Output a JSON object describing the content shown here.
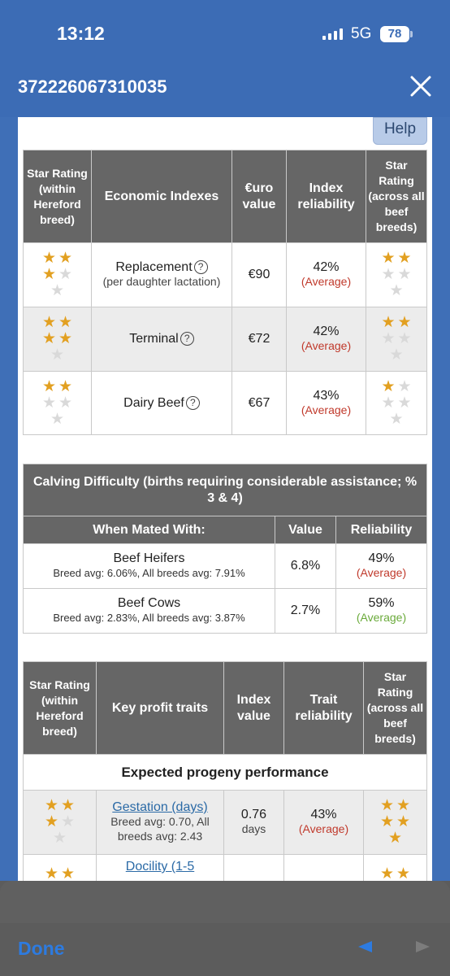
{
  "status": {
    "time": "13:12",
    "network": "5G",
    "battery": "78"
  },
  "nav": {
    "title": "372226067310035"
  },
  "help_label": "Help",
  "economic": {
    "headers": [
      "Star Rating (within Hereford breed)",
      "Economic Indexes",
      "€uro value",
      "Index reliability",
      "Star Rating (across all beef breeds)"
    ],
    "rows": [
      {
        "name": "Replacement",
        "sub": "(per daughter lactation)",
        "value": "€90",
        "reliability": "42%",
        "rel_label": "(Average)",
        "stars_within": 3,
        "stars_across": 2
      },
      {
        "name": "Terminal",
        "sub": "",
        "value": "€72",
        "reliability": "42%",
        "rel_label": "(Average)",
        "stars_within": 4,
        "stars_across": 2
      },
      {
        "name": "Dairy Beef",
        "sub": "",
        "value": "€67",
        "reliability": "43%",
        "rel_label": "(Average)",
        "stars_within": 2,
        "stars_across": 1
      }
    ]
  },
  "calving": {
    "title": "Calving Difficulty (births requiring considerable assistance; % 3 & 4)",
    "headers": [
      "When Mated With:",
      "Value",
      "Reliability"
    ],
    "rows": [
      {
        "name": "Beef Heifers",
        "sub": "Breed avg: 6.06%, All breeds avg: 7.91%",
        "value": "6.8%",
        "reliability": "49%",
        "rel_label": "(Average)"
      },
      {
        "name": "Beef Cows",
        "sub": "Breed avg: 2.83%, All breeds avg: 3.87%",
        "value": "2.7%",
        "reliability": "59%",
        "rel_label": "(Average)"
      }
    ]
  },
  "traits": {
    "headers": [
      "Star Rating (within Hereford breed)",
      "Key profit traits",
      "Index value",
      "Trait reliability",
      "Star Rating (across all beef breeds)"
    ],
    "section": "Expected progeny performance",
    "rows": [
      {
        "name": "Gestation (days)",
        "sub": "Breed avg: 0.70, All breeds avg: 2.43",
        "value": "0.76",
        "unit": "days",
        "reliability": "43%",
        "rel_label": "(Average)",
        "stars_within": 3,
        "stars_across": 5
      },
      {
        "name": "Docility (1-5",
        "stars_within": 2,
        "stars_across": 2
      }
    ]
  },
  "toolbar": {
    "done_label": "Done"
  },
  "colors": {
    "header_blue": "#3c6cb5",
    "table_header": "#666666",
    "star": "#e2a021",
    "link": "#2b6aa6",
    "avg_red": "#c0392b",
    "avg_green": "#6aaa3a"
  }
}
